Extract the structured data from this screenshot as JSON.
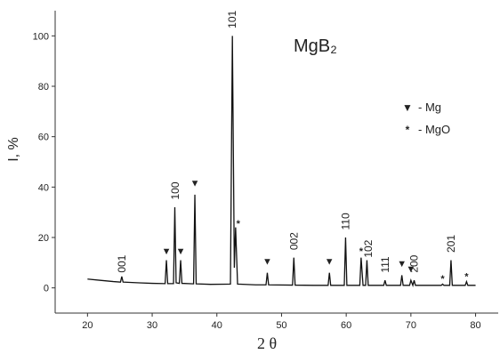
{
  "chart_data": {
    "type": "line",
    "title": "MgB₂",
    "x_label": "2 θ",
    "y_label": "I, %",
    "x": [
      20,
      22,
      24,
      25.1,
      25.3,
      25.5,
      28,
      30,
      32.0,
      32.2,
      32.4,
      33.3,
      33.5,
      33.7,
      34.2,
      34.4,
      34.6,
      36.4,
      36.6,
      36.8,
      39,
      42.1,
      42.4,
      42.7,
      42.9,
      43.2,
      46,
      47.6,
      47.8,
      48.0,
      51.7,
      51.9,
      52.1,
      55,
      57.2,
      57.4,
      57.6,
      59.7,
      59.9,
      60.1,
      62.1,
      62.3,
      62.6,
      63.0,
      63.2,
      63.4,
      65.8,
      66.0,
      66.2,
      68.4,
      68.6,
      68.8,
      69.8,
      70.0,
      70.3,
      70.5,
      70.7,
      73,
      74.7,
      74.9,
      75.1,
      76.0,
      76.2,
      76.4,
      78.4,
      78.6,
      78.8,
      80
    ],
    "series": [
      {
        "color": "#111111",
        "values": [
          3.5,
          3,
          2.5,
          2.3,
          4.5,
          2.3,
          2,
          1.8,
          1.7,
          11,
          1.7,
          1.7,
          32,
          2,
          1.8,
          11,
          1.8,
          1.6,
          37,
          1.6,
          1.4,
          1.5,
          100,
          8,
          24,
          1.5,
          1.2,
          1.2,
          6,
          1.2,
          1.1,
          12,
          1.1,
          1,
          1,
          6,
          1,
          1,
          20,
          1,
          1,
          12,
          1,
          1,
          11,
          1,
          1,
          3,
          1,
          1,
          5,
          1,
          1,
          3,
          1,
          3,
          1,
          1,
          1,
          1.5,
          1,
          1,
          11,
          1,
          1,
          2.5,
          1,
          1
        ]
      }
    ],
    "xlim": [
      15,
      83.5
    ],
    "ylim": [
      -10,
      110
    ],
    "xticks": [
      20,
      30,
      40,
      50,
      60,
      70,
      80
    ],
    "yticks": [
      0,
      20,
      40,
      60,
      80,
      100
    ],
    "peak_labels": [
      {
        "text": "001",
        "x": 25.3,
        "y": 6
      },
      {
        "text": "100",
        "x": 33.6,
        "y": 35
      },
      {
        "text": "101",
        "x": 42.4,
        "y": 103
      },
      {
        "text": "002",
        "x": 51.9,
        "y": 15
      },
      {
        "text": "110",
        "x": 59.9,
        "y": 23
      },
      {
        "text": "102",
        "x": 63.4,
        "y": 12
      },
      {
        "text": "111",
        "x": 66.0,
        "y": 6
      },
      {
        "text": "200",
        "x": 70.5,
        "y": 6
      },
      {
        "text": "201",
        "x": 76.2,
        "y": 14
      }
    ],
    "phase_markers": [
      {
        "symbol": "▼",
        "x": 32.2,
        "y": 14
      },
      {
        "symbol": "▼",
        "x": 34.4,
        "y": 14
      },
      {
        "symbol": "▼",
        "x": 36.6,
        "y": 41
      },
      {
        "symbol": "▼",
        "x": 47.8,
        "y": 10
      },
      {
        "symbol": "▼",
        "x": 57.4,
        "y": 10
      },
      {
        "symbol": "▼",
        "x": 68.6,
        "y": 9
      },
      {
        "symbol": "▼",
        "x": 70.0,
        "y": 7
      },
      {
        "symbol": "*",
        "x": 43.3,
        "y": 25
      },
      {
        "symbol": "*",
        "x": 62.3,
        "y": 14
      },
      {
        "symbol": "*",
        "x": 74.9,
        "y": 3
      },
      {
        "symbol": "*",
        "x": 78.6,
        "y": 4
      }
    ],
    "legend": [
      {
        "symbol": "▼",
        "label": "- Mg"
      },
      {
        "symbol": "*",
        "label": "- MgO"
      }
    ]
  }
}
